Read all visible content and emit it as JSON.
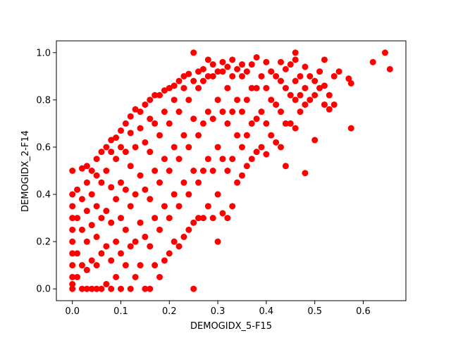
{
  "chart_data": {
    "type": "scatter",
    "title": "",
    "xlabel": "DEMOGIDX_5-F15",
    "ylabel": "DEMOGIDX_2-F14",
    "xlim": [
      -0.033,
      0.688
    ],
    "ylim": [
      -0.05,
      1.05
    ],
    "x_ticks": [
      0.0,
      0.1,
      0.2,
      0.3,
      0.4,
      0.5,
      0.6
    ],
    "x_tick_labels": [
      "0.0",
      "0.1",
      "0.2",
      "0.3",
      "0.4",
      "0.5",
      "0.6"
    ],
    "y_ticks": [
      0.0,
      0.2,
      0.4,
      0.6,
      0.8,
      1.0
    ],
    "y_tick_labels": [
      "0.0",
      "0.2",
      "0.4",
      "0.6",
      "0.8",
      "1.0"
    ],
    "grid": false,
    "legend": "none",
    "marker_color": "#ff0000",
    "series": [
      {
        "points": [
          [
            0.0,
            0.0
          ],
          [
            0.0,
            0.02
          ],
          [
            0.0,
            0.05
          ],
          [
            0.0,
            0.1
          ],
          [
            0.0,
            0.15
          ],
          [
            0.0,
            0.2
          ],
          [
            0.0,
            0.25
          ],
          [
            0.0,
            0.3
          ],
          [
            0.0,
            0.35
          ],
          [
            0.0,
            0.4
          ],
          [
            0.0,
            0.5
          ],
          [
            0.01,
            0.05
          ],
          [
            0.01,
            0.15
          ],
          [
            0.01,
            0.3
          ],
          [
            0.01,
            0.42
          ],
          [
            0.02,
            0.0
          ],
          [
            0.02,
            0.1
          ],
          [
            0.02,
            0.25
          ],
          [
            0.02,
            0.38
          ],
          [
            0.02,
            0.51
          ],
          [
            0.03,
            0.0
          ],
          [
            0.03,
            0.08
          ],
          [
            0.03,
            0.2
          ],
          [
            0.03,
            0.33
          ],
          [
            0.03,
            0.45
          ],
          [
            0.03,
            0.52
          ],
          [
            0.04,
            0.0
          ],
          [
            0.04,
            0.12
          ],
          [
            0.04,
            0.27
          ],
          [
            0.04,
            0.4
          ],
          [
            0.04,
            0.5
          ],
          [
            0.05,
            0.0
          ],
          [
            0.05,
            0.1
          ],
          [
            0.05,
            0.22
          ],
          [
            0.05,
            0.35
          ],
          [
            0.05,
            0.48
          ],
          [
            0.05,
            0.55
          ],
          [
            0.06,
            0.0
          ],
          [
            0.06,
            0.15
          ],
          [
            0.06,
            0.3
          ],
          [
            0.06,
            0.45
          ],
          [
            0.06,
            0.58
          ],
          [
            0.07,
            0.02
          ],
          [
            0.07,
            0.18
          ],
          [
            0.07,
            0.33
          ],
          [
            0.07,
            0.5
          ],
          [
            0.07,
            0.6
          ],
          [
            0.08,
            0.0
          ],
          [
            0.08,
            0.12
          ],
          [
            0.08,
            0.28
          ],
          [
            0.08,
            0.43
          ],
          [
            0.08,
            0.58
          ],
          [
            0.08,
            0.63
          ],
          [
            0.09,
            0.05
          ],
          [
            0.09,
            0.2
          ],
          [
            0.09,
            0.38
          ],
          [
            0.09,
            0.55
          ],
          [
            0.09,
            0.64
          ],
          [
            0.1,
            0.0
          ],
          [
            0.1,
            0.15
          ],
          [
            0.1,
            0.3
          ],
          [
            0.1,
            0.45
          ],
          [
            0.1,
            0.6
          ],
          [
            0.1,
            0.67
          ],
          [
            0.11,
            0.1
          ],
          [
            0.11,
            0.25
          ],
          [
            0.11,
            0.42
          ],
          [
            0.11,
            0.58
          ],
          [
            0.11,
            0.7
          ],
          [
            0.12,
            0.0
          ],
          [
            0.12,
            0.18
          ],
          [
            0.12,
            0.35
          ],
          [
            0.12,
            0.52
          ],
          [
            0.12,
            0.66
          ],
          [
            0.12,
            0.73
          ],
          [
            0.13,
            0.05
          ],
          [
            0.13,
            0.2
          ],
          [
            0.13,
            0.4
          ],
          [
            0.13,
            0.6
          ],
          [
            0.13,
            0.76
          ],
          [
            0.14,
            0.1
          ],
          [
            0.14,
            0.28
          ],
          [
            0.14,
            0.48
          ],
          [
            0.14,
            0.68
          ],
          [
            0.14,
            0.75
          ],
          [
            0.15,
            0.0
          ],
          [
            0.15,
            0.22
          ],
          [
            0.15,
            0.42
          ],
          [
            0.15,
            0.62
          ],
          [
            0.15,
            0.78
          ],
          [
            0.16,
            0.0
          ],
          [
            0.16,
            0.18
          ],
          [
            0.16,
            0.38
          ],
          [
            0.16,
            0.58
          ],
          [
            0.16,
            0.72
          ],
          [
            0.16,
            0.8
          ],
          [
            0.17,
            0.1
          ],
          [
            0.17,
            0.3
          ],
          [
            0.17,
            0.5
          ],
          [
            0.17,
            0.7
          ],
          [
            0.17,
            0.82
          ],
          [
            0.18,
            0.05
          ],
          [
            0.18,
            0.25
          ],
          [
            0.18,
            0.45
          ],
          [
            0.18,
            0.65
          ],
          [
            0.18,
            0.82
          ],
          [
            0.19,
            0.12
          ],
          [
            0.19,
            0.35
          ],
          [
            0.19,
            0.55
          ],
          [
            0.19,
            0.75
          ],
          [
            0.19,
            0.84
          ],
          [
            0.2,
            0.15
          ],
          [
            0.2,
            0.3
          ],
          [
            0.2,
            0.5
          ],
          [
            0.2,
            0.7
          ],
          [
            0.2,
            0.85
          ],
          [
            0.21,
            0.2
          ],
          [
            0.21,
            0.4
          ],
          [
            0.21,
            0.6
          ],
          [
            0.21,
            0.8
          ],
          [
            0.21,
            0.86
          ],
          [
            0.22,
            0.18
          ],
          [
            0.22,
            0.35
          ],
          [
            0.22,
            0.55
          ],
          [
            0.22,
            0.75
          ],
          [
            0.22,
            0.88
          ],
          [
            0.23,
            0.22
          ],
          [
            0.23,
            0.45
          ],
          [
            0.23,
            0.65
          ],
          [
            0.23,
            0.85
          ],
          [
            0.23,
            0.9
          ],
          [
            0.24,
            0.25
          ],
          [
            0.24,
            0.4
          ],
          [
            0.24,
            0.6
          ],
          [
            0.24,
            0.8
          ],
          [
            0.24,
            0.91
          ],
          [
            0.25,
            0.0
          ],
          [
            0.25,
            0.28
          ],
          [
            0.25,
            0.5
          ],
          [
            0.25,
            0.72
          ],
          [
            0.25,
            0.88
          ],
          [
            0.25,
            1.0
          ],
          [
            0.26,
            0.3
          ],
          [
            0.26,
            0.45
          ],
          [
            0.26,
            0.65
          ],
          [
            0.26,
            0.85
          ],
          [
            0.26,
            0.92
          ],
          [
            0.27,
            0.3
          ],
          [
            0.27,
            0.5
          ],
          [
            0.27,
            0.7
          ],
          [
            0.27,
            0.88
          ],
          [
            0.27,
            0.93
          ],
          [
            0.28,
            0.35
          ],
          [
            0.28,
            0.55
          ],
          [
            0.28,
            0.75
          ],
          [
            0.28,
            0.9
          ],
          [
            0.28,
            0.97
          ],
          [
            0.29,
            0.3
          ],
          [
            0.29,
            0.5
          ],
          [
            0.29,
            0.72
          ],
          [
            0.29,
            0.9
          ],
          [
            0.29,
            0.95
          ],
          [
            0.3,
            0.2
          ],
          [
            0.3,
            0.4
          ],
          [
            0.3,
            0.6
          ],
          [
            0.3,
            0.8
          ],
          [
            0.3,
            0.92
          ],
          [
            0.31,
            0.32
          ],
          [
            0.31,
            0.55
          ],
          [
            0.31,
            0.75
          ],
          [
            0.31,
            0.92
          ],
          [
            0.31,
            0.96
          ],
          [
            0.32,
            0.3
          ],
          [
            0.32,
            0.5
          ],
          [
            0.32,
            0.7
          ],
          [
            0.32,
            0.85
          ],
          [
            0.32,
            0.94
          ],
          [
            0.33,
            0.35
          ],
          [
            0.33,
            0.55
          ],
          [
            0.33,
            0.75
          ],
          [
            0.33,
            0.9
          ],
          [
            0.33,
            0.97
          ],
          [
            0.34,
            0.45
          ],
          [
            0.34,
            0.65
          ],
          [
            0.34,
            0.8
          ],
          [
            0.34,
            0.93
          ],
          [
            0.35,
            0.48
          ],
          [
            0.35,
            0.6
          ],
          [
            0.35,
            0.75
          ],
          [
            0.35,
            0.9
          ],
          [
            0.35,
            0.95
          ],
          [
            0.36,
            0.52
          ],
          [
            0.36,
            0.65
          ],
          [
            0.36,
            0.8
          ],
          [
            0.36,
            0.92
          ],
          [
            0.37,
            0.55
          ],
          [
            0.37,
            0.7
          ],
          [
            0.37,
            0.85
          ],
          [
            0.37,
            0.95
          ],
          [
            0.38,
            0.58
          ],
          [
            0.38,
            0.72
          ],
          [
            0.38,
            0.85
          ],
          [
            0.38,
            0.98
          ],
          [
            0.39,
            0.6
          ],
          [
            0.39,
            0.75
          ],
          [
            0.39,
            0.9
          ],
          [
            0.4,
            0.57
          ],
          [
            0.4,
            0.7
          ],
          [
            0.4,
            0.85
          ],
          [
            0.4,
            0.96
          ],
          [
            0.41,
            0.65
          ],
          [
            0.41,
            0.8
          ],
          [
            0.41,
            0.92
          ],
          [
            0.42,
            0.62
          ],
          [
            0.42,
            0.78
          ],
          [
            0.42,
            0.9
          ],
          [
            0.43,
            0.6
          ],
          [
            0.43,
            0.75
          ],
          [
            0.43,
            0.88
          ],
          [
            0.43,
            0.96
          ],
          [
            0.44,
            0.52
          ],
          [
            0.44,
            0.7
          ],
          [
            0.44,
            0.85
          ],
          [
            0.44,
            0.93
          ],
          [
            0.45,
            0.7
          ],
          [
            0.45,
            0.82
          ],
          [
            0.45,
            0.95
          ],
          [
            0.46,
            0.68
          ],
          [
            0.46,
            0.8
          ],
          [
            0.46,
            0.88
          ],
          [
            0.46,
            0.97
          ],
          [
            0.46,
            1.0
          ],
          [
            0.47,
            0.75
          ],
          [
            0.47,
            0.82
          ],
          [
            0.47,
            0.9
          ],
          [
            0.48,
            0.49
          ],
          [
            0.48,
            0.78
          ],
          [
            0.48,
            0.85
          ],
          [
            0.48,
            0.94
          ],
          [
            0.49,
            0.8
          ],
          [
            0.49,
            0.9
          ],
          [
            0.5,
            0.63
          ],
          [
            0.5,
            0.82
          ],
          [
            0.5,
            0.88
          ],
          [
            0.51,
            0.85
          ],
          [
            0.51,
            0.92
          ],
          [
            0.52,
            0.78
          ],
          [
            0.52,
            0.86
          ],
          [
            0.52,
            0.97
          ],
          [
            0.53,
            0.76
          ],
          [
            0.53,
            0.82
          ],
          [
            0.54,
            0.78
          ],
          [
            0.54,
            0.9
          ],
          [
            0.55,
            0.92
          ],
          [
            0.57,
            0.89
          ],
          [
            0.575,
            0.68
          ],
          [
            0.575,
            0.87
          ],
          [
            0.62,
            0.96
          ],
          [
            0.645,
            1.0
          ],
          [
            0.655,
            0.93
          ]
        ]
      }
    ]
  }
}
